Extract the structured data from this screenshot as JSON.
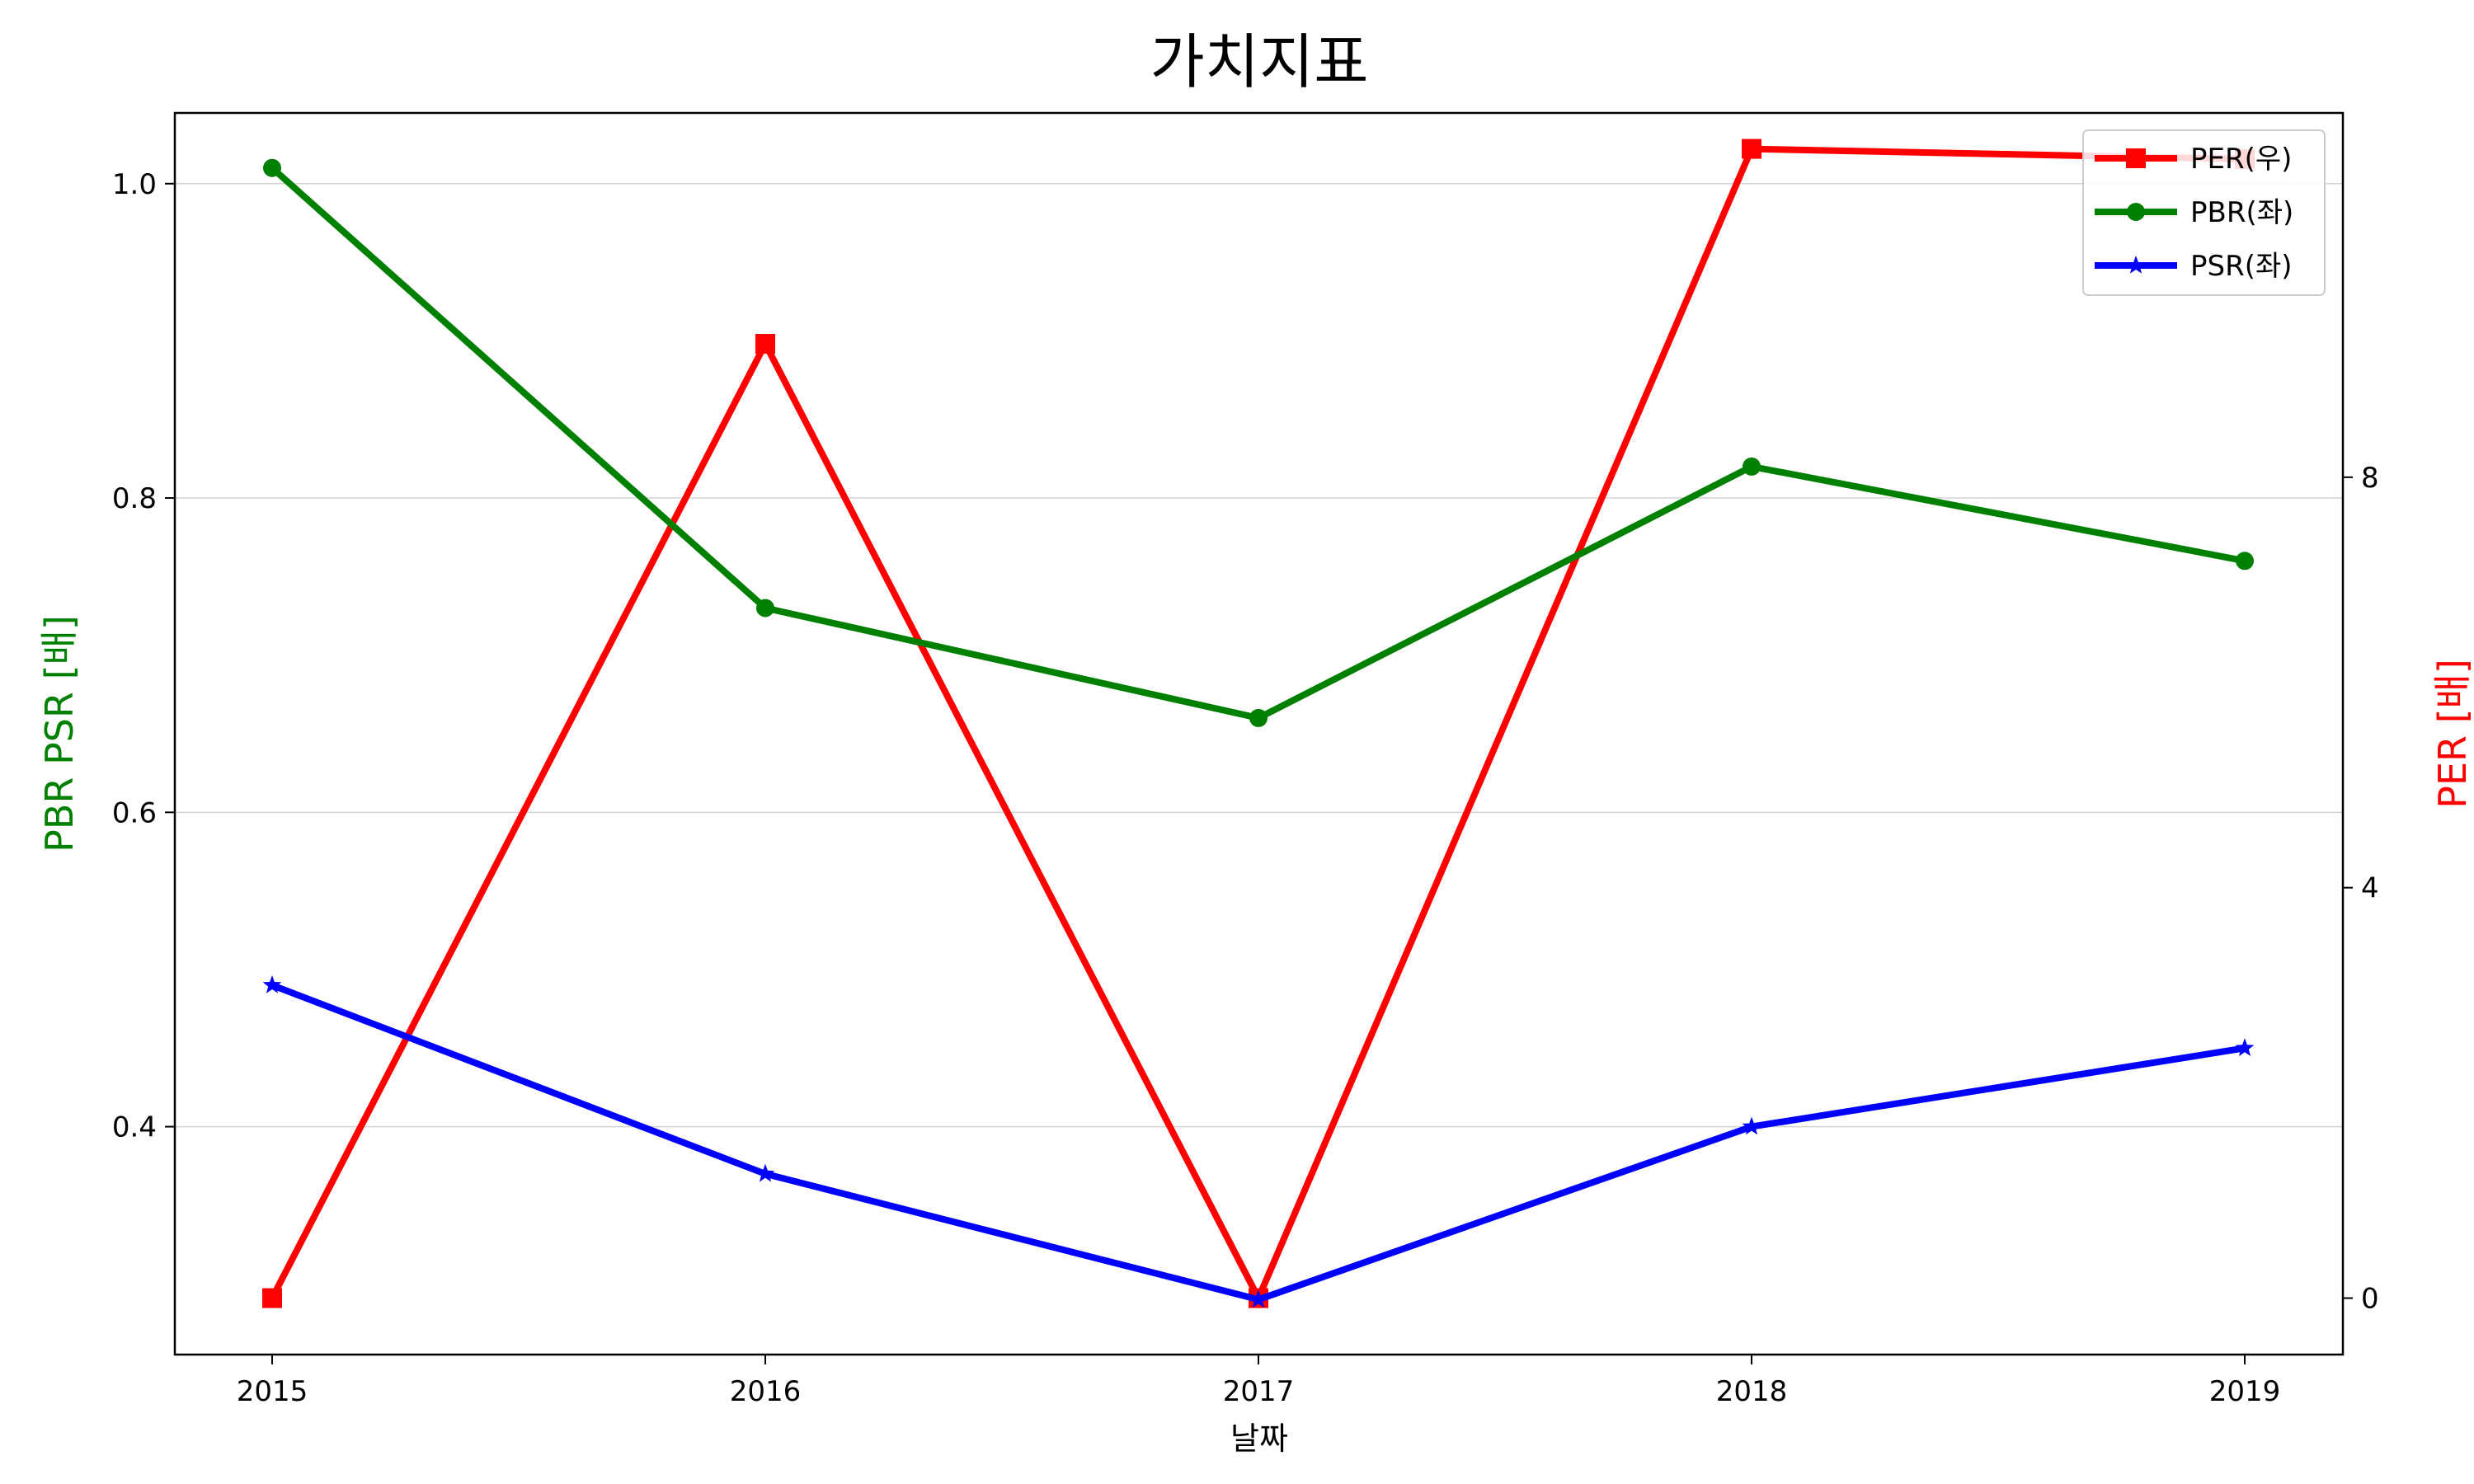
{
  "chart_data": {
    "type": "line",
    "title": "가치지표",
    "xlabel": "날짜",
    "ylabel_left": "PBR PSR [배]",
    "ylabel_right": "PER [배]",
    "categories": [
      "2015",
      "2016",
      "2017",
      "2018",
      "2019"
    ],
    "ylim_left": [
      0.255,
      1.045
    ],
    "yticks_left": [
      "0.4",
      "0.6",
      "0.8",
      "1.0"
    ],
    "ylim_right": [
      -0.55,
      11.55
    ],
    "yticks_right": [
      "0",
      "4",
      "8"
    ],
    "grid": "horizontal, left axis",
    "legend_position": "upper right",
    "series": [
      {
        "name": "PER(우)",
        "axis": "right",
        "color": "#ff0000",
        "marker": "square",
        "values": [
          0,
          9.3,
          0,
          11.2,
          11.1
        ]
      },
      {
        "name": "PBR(좌)",
        "axis": "left",
        "color": "#008000",
        "marker": "circle",
        "values": [
          1.01,
          0.73,
          0.66,
          0.82,
          0.76
        ]
      },
      {
        "name": "PSR(좌)",
        "axis": "left",
        "color": "#0000ff",
        "marker": "star",
        "values": [
          0.49,
          0.37,
          0.29,
          0.4,
          0.45
        ]
      }
    ]
  }
}
